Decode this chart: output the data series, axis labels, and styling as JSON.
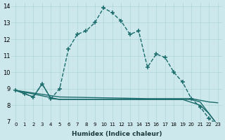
{
  "xlabel": "Humidex (Indice chaleur)",
  "bg_color": "#cde8ec",
  "grid_color": "#aed4d8",
  "line_color": "#1a6b6b",
  "xlim": [
    -0.5,
    23.5
  ],
  "ylim": [
    7,
    14.2
  ],
  "xticks": [
    0,
    1,
    2,
    3,
    4,
    5,
    6,
    7,
    8,
    9,
    10,
    11,
    12,
    13,
    14,
    15,
    16,
    17,
    18,
    19,
    20,
    21,
    22,
    23
  ],
  "yticks": [
    7,
    8,
    9,
    10,
    11,
    12,
    13,
    14
  ],
  "line1_x": [
    0,
    1,
    2,
    3,
    4,
    5,
    6,
    7,
    8,
    9,
    10,
    11,
    12,
    13,
    14,
    15,
    16,
    17,
    18,
    19,
    20,
    21,
    22,
    23
  ],
  "line1_y": [
    8.9,
    8.7,
    8.5,
    9.3,
    8.4,
    9.0,
    11.4,
    12.3,
    12.5,
    13.0,
    13.9,
    13.6,
    13.1,
    12.3,
    12.5,
    10.3,
    11.1,
    10.9,
    10.0,
    9.4,
    8.4,
    7.9,
    7.2,
    6.8
  ],
  "line2_x": [
    0,
    1,
    2,
    3,
    4,
    5,
    10,
    15,
    19,
    20,
    21,
    22,
    23
  ],
  "line2_y": [
    8.9,
    8.7,
    8.5,
    9.3,
    8.4,
    8.35,
    8.35,
    8.35,
    8.35,
    8.35,
    8.2,
    7.5,
    6.8
  ],
  "line3_x": [
    0,
    5,
    10,
    15,
    19,
    20,
    21,
    22,
    23
  ],
  "line3_y": [
    8.9,
    8.5,
    8.45,
    8.4,
    8.4,
    8.4,
    8.3,
    8.2,
    8.15
  ],
  "line4_x": [
    0,
    5,
    10,
    15,
    19,
    21,
    22,
    23
  ],
  "line4_y": [
    8.9,
    8.35,
    8.35,
    8.35,
    8.35,
    8.0,
    7.5,
    6.8
  ]
}
